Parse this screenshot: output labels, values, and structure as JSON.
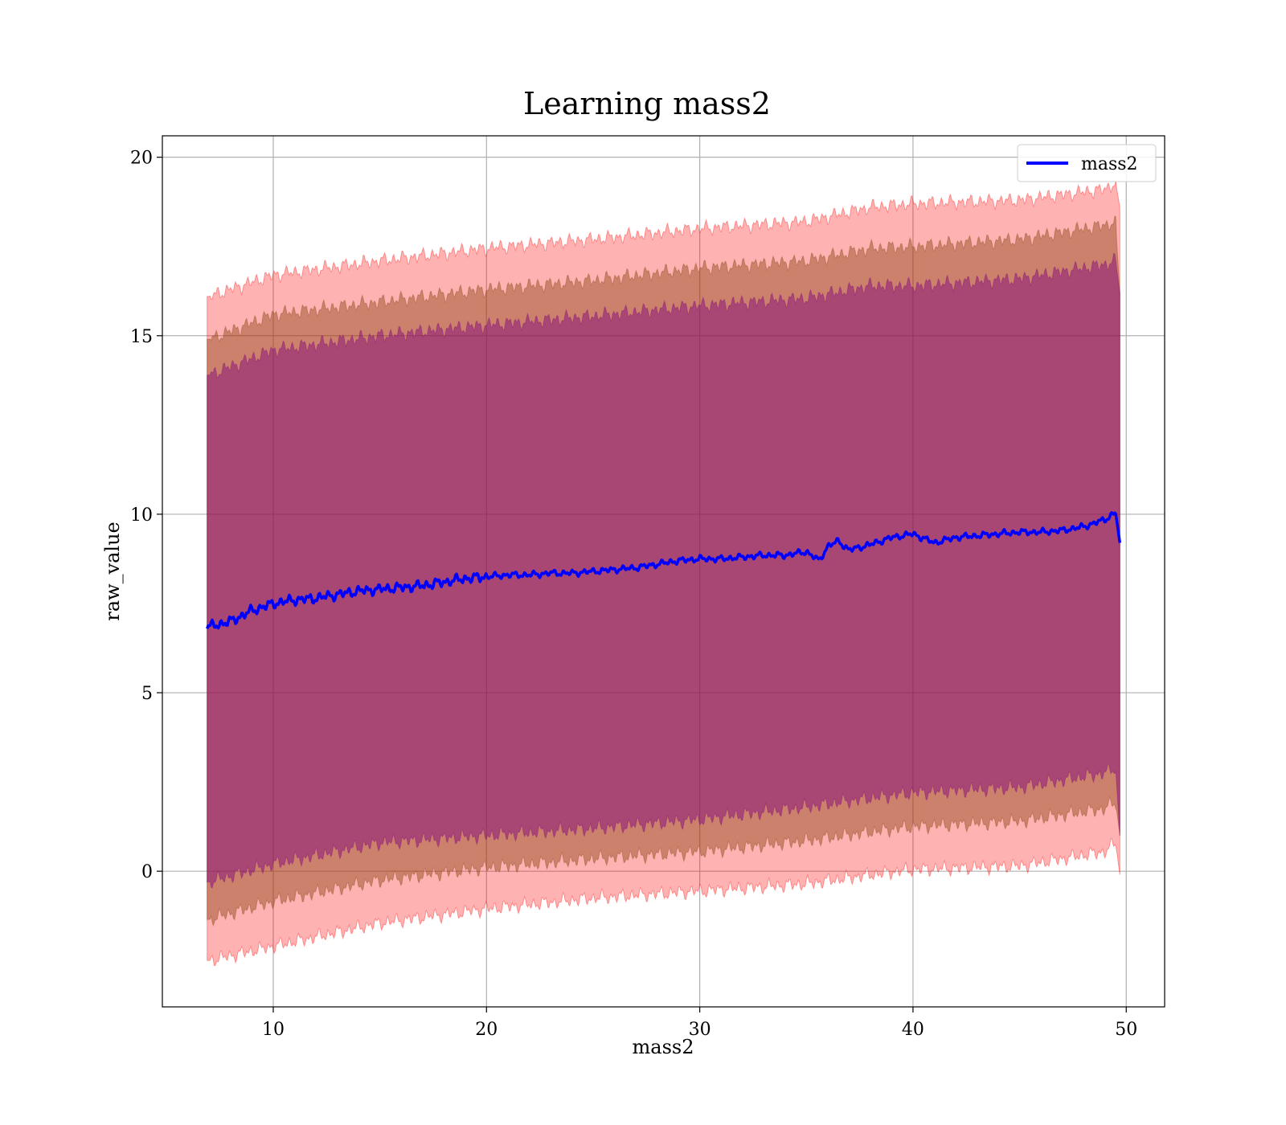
{
  "chart_data": {
    "type": "area",
    "title": "Learning mass2",
    "xlabel": "mass2",
    "ylabel": "raw_value",
    "xlim": [
      4.8,
      51.8
    ],
    "ylim": [
      -3.8,
      20.6
    ],
    "xticks": [
      10,
      20,
      30,
      40,
      50
    ],
    "yticks": [
      0,
      5,
      10,
      15,
      20
    ],
    "grid": true,
    "legend_position": "top-right",
    "colors": {
      "line": "#0000ff",
      "band_outer": "#ff0000",
      "band_middle": "#8b4513",
      "band_inner": "#800080"
    },
    "x_range": [
      6.9,
      49.7
    ],
    "series": [
      {
        "name": "mass2",
        "x": [
          7,
          8,
          9,
          10,
          11,
          12,
          13,
          14,
          15,
          16,
          17,
          18,
          19,
          20,
          21,
          22,
          23,
          24,
          25,
          26,
          27,
          28,
          29,
          30,
          31,
          32,
          33,
          34,
          35,
          35.6,
          36,
          36.5,
          37,
          38,
          39,
          40,
          41,
          42,
          43,
          44,
          45,
          46,
          47,
          48,
          49,
          49.5,
          49.7
        ],
        "values": [
          6.85,
          7.0,
          7.3,
          7.5,
          7.6,
          7.65,
          7.75,
          7.85,
          7.9,
          7.95,
          8.0,
          8.1,
          8.2,
          8.25,
          8.3,
          8.3,
          8.35,
          8.35,
          8.4,
          8.45,
          8.5,
          8.6,
          8.7,
          8.75,
          8.75,
          8.8,
          8.85,
          8.85,
          8.95,
          8.7,
          9.1,
          9.25,
          9.0,
          9.15,
          9.35,
          9.45,
          9.2,
          9.35,
          9.4,
          9.45,
          9.5,
          9.5,
          9.55,
          9.65,
          9.85,
          10.05,
          9.2
        ]
      }
    ],
    "bands": [
      {
        "x": [
          7,
          10,
          15,
          20,
          25,
          30,
          35,
          38,
          40,
          45,
          49,
          49.5,
          49.7
        ],
        "upper": [
          16.1,
          16.7,
          17.1,
          17.45,
          17.7,
          18.0,
          18.2,
          18.6,
          18.7,
          18.8,
          19.1,
          19.3,
          18.6
        ],
        "lower": [
          -2.5,
          -2.1,
          -1.45,
          -1.05,
          -0.75,
          -0.55,
          -0.35,
          -0.1,
          0.05,
          0.15,
          0.55,
          0.8,
          -0.1
        ]
      },
      {
        "x": [
          7,
          10,
          15,
          20,
          25,
          30,
          35,
          38,
          40,
          45,
          49,
          49.5,
          49.7
        ],
        "upper": [
          14.9,
          15.6,
          15.95,
          16.3,
          16.55,
          16.9,
          17.1,
          17.45,
          17.5,
          17.7,
          18.1,
          18.2,
          16.2
        ],
        "lower": [
          -1.35,
          -0.85,
          -0.25,
          0.1,
          0.35,
          0.55,
          0.85,
          1.1,
          1.25,
          1.4,
          1.75,
          1.95,
          1.0
        ]
      },
      {
        "x": [
          7,
          10,
          15,
          20,
          25,
          30,
          35,
          38,
          40,
          45,
          49,
          49.5,
          49.7
        ],
        "upper": [
          13.9,
          14.6,
          15.0,
          15.3,
          15.55,
          15.85,
          16.05,
          16.4,
          16.4,
          16.6,
          17.0,
          17.1,
          16.2
        ],
        "lower": [
          -0.3,
          0.2,
          0.8,
          1.0,
          1.2,
          1.45,
          1.8,
          2.05,
          2.2,
          2.35,
          2.75,
          2.9,
          1.0
        ]
      }
    ]
  }
}
